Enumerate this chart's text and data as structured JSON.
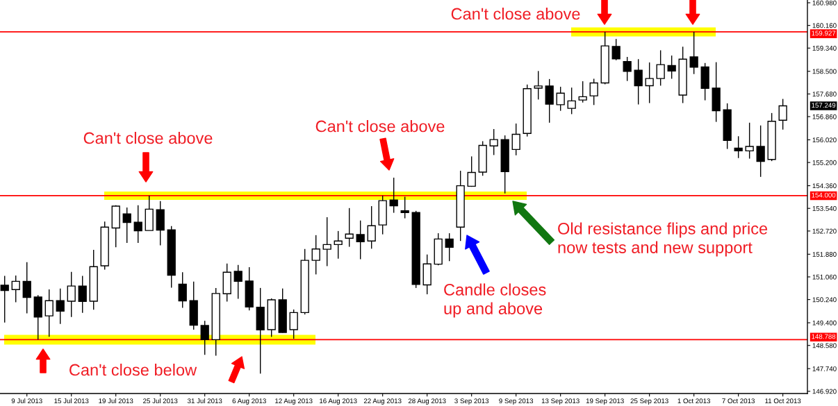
{
  "chart_data": {
    "type": "candlestick",
    "color": "#000000",
    "categories": [
      null,
      null,
      "9 Jul 2013",
      null,
      null,
      null,
      "15 Jul 2013",
      null,
      null,
      null,
      "19 Jul 2013",
      null,
      null,
      null,
      "25 Jul 2013",
      null,
      null,
      null,
      "31 Jul 2013",
      null,
      null,
      null,
      "6 Aug 2013",
      null,
      null,
      null,
      "12 Aug 2013",
      null,
      null,
      null,
      "16 Aug 2013",
      null,
      null,
      null,
      "22 Aug 2013",
      null,
      null,
      null,
      "28 Aug 2013",
      null,
      null,
      null,
      "3 Sep 2013",
      null,
      null,
      null,
      "9 Sep 2013",
      null,
      null,
      null,
      "13 Sep 2013",
      null,
      null,
      null,
      "19 Sep 2013",
      null,
      null,
      null,
      "25 Sep 2013",
      null,
      null,
      null,
      "1 Oct 2013",
      null,
      null,
      null,
      "7 Oct 2013",
      null,
      null,
      null,
      "11 Oct 2013"
    ],
    "ohlc": [
      [
        150.76,
        151.1,
        149.41,
        150.57
      ],
      [
        150.6,
        151.11,
        150.14,
        150.9
      ],
      [
        150.9,
        151.59,
        149.74,
        150.32
      ],
      [
        150.33,
        150.4,
        148.79,
        149.61
      ],
      [
        149.65,
        150.61,
        148.89,
        150.2
      ],
      [
        150.2,
        150.64,
        149.36,
        149.82
      ],
      [
        150.18,
        151.24,
        149.61,
        150.73
      ],
      [
        150.73,
        151.1,
        149.76,
        150.17
      ],
      [
        150.18,
        152.04,
        149.87,
        151.43
      ],
      [
        151.46,
        153.06,
        151.32,
        152.86
      ],
      [
        152.83,
        153.65,
        152.13,
        153.62
      ],
      [
        153.34,
        153.57,
        152.29,
        153.03
      ],
      [
        153.04,
        153.65,
        152.29,
        152.73
      ],
      [
        152.74,
        154.0,
        152.74,
        153.51
      ],
      [
        153.49,
        153.8,
        152.2,
        152.75
      ],
      [
        152.76,
        152.9,
        150.67,
        151.12
      ],
      [
        150.8,
        151.23,
        149.94,
        150.19
      ],
      [
        150.2,
        150.89,
        149.15,
        149.31
      ],
      [
        149.3,
        149.47,
        148.24,
        148.79
      ],
      [
        148.79,
        150.66,
        148.21,
        150.46
      ],
      [
        150.45,
        151.54,
        150.17,
        151.23
      ],
      [
        151.26,
        151.49,
        150.27,
        150.9
      ],
      [
        150.91,
        151.41,
        149.85,
        149.97
      ],
      [
        149.96,
        150.66,
        147.56,
        149.14
      ],
      [
        149.15,
        150.28,
        148.89,
        150.23
      ],
      [
        150.23,
        150.64,
        149.04,
        149.05
      ],
      [
        149.15,
        149.88,
        148.82,
        149.77
      ],
      [
        149.77,
        152.07,
        149.7,
        151.66
      ],
      [
        151.66,
        152.57,
        151.15,
        152.07
      ],
      [
        152.06,
        153.22,
        151.45,
        152.23
      ],
      [
        152.23,
        152.72,
        151.72,
        152.36
      ],
      [
        152.46,
        153.55,
        152.15,
        152.61
      ],
      [
        152.59,
        153.1,
        151.7,
        152.33
      ],
      [
        152.36,
        153.62,
        152.08,
        152.91
      ],
      [
        152.94,
        154.0,
        152.6,
        153.82
      ],
      [
        153.84,
        154.65,
        153.38,
        153.63
      ],
      [
        153.45,
        153.96,
        153.18,
        153.39
      ],
      [
        153.39,
        153.45,
        150.66,
        150.79
      ],
      [
        150.77,
        151.87,
        150.43,
        151.53
      ],
      [
        151.52,
        152.64,
        151.48,
        152.43
      ],
      [
        152.43,
        152.64,
        151.63,
        152.13
      ],
      [
        152.86,
        154.9,
        152.36,
        154.36
      ],
      [
        154.34,
        155.42,
        154.32,
        154.84
      ],
      [
        154.85,
        155.97,
        154.72,
        155.82
      ],
      [
        155.8,
        156.41,
        155.47,
        156.03
      ],
      [
        156.03,
        156.18,
        154.08,
        154.87
      ],
      [
        155.67,
        156.61,
        155.46,
        156.22
      ],
      [
        156.25,
        158.02,
        156.14,
        157.87
      ],
      [
        157.89,
        158.51,
        157.48,
        157.97
      ],
      [
        157.97,
        158.22,
        156.64,
        157.31
      ],
      [
        157.29,
        157.94,
        157.07,
        157.71
      ],
      [
        157.16,
        157.91,
        156.95,
        157.43
      ],
      [
        157.46,
        158.14,
        157.37,
        157.58
      ],
      [
        157.61,
        158.23,
        157.28,
        158.08
      ],
      [
        158.08,
        159.93,
        158.03,
        159.42
      ],
      [
        159.4,
        159.67,
        158.9,
        158.95
      ],
      [
        158.85,
        159.02,
        158.15,
        158.5
      ],
      [
        158.54,
        158.94,
        157.3,
        157.98
      ],
      [
        157.98,
        158.82,
        157.35,
        158.24
      ],
      [
        158.24,
        159.26,
        157.98,
        158.74
      ],
      [
        158.71,
        159.07,
        158.23,
        158.51
      ],
      [
        157.64,
        159.39,
        157.35,
        158.94
      ],
      [
        159.02,
        159.93,
        158.4,
        158.65
      ],
      [
        158.66,
        158.8,
        157.45,
        157.88
      ],
      [
        157.89,
        158.83,
        156.67,
        157.07
      ],
      [
        157.11,
        157.34,
        155.69,
        156.0
      ],
      [
        155.72,
        156.15,
        155.36,
        155.62
      ],
      [
        155.62,
        156.64,
        155.34,
        155.78
      ],
      [
        155.78,
        156.54,
        154.68,
        155.24
      ],
      [
        155.31,
        156.99,
        155.25,
        156.69
      ],
      [
        156.73,
        157.5,
        156.39,
        157.249
      ]
    ],
    "ylim": [
      146.84,
      161.08
    ],
    "yticks": [
      {
        "value": 146.92,
        "label": "146.920"
      },
      {
        "value": 147.74,
        "label": "147.740"
      },
      {
        "value": 148.58,
        "label": "148.580"
      },
      {
        "value": 149.4,
        "label": "149.400"
      },
      {
        "value": 150.24,
        "label": "150.240"
      },
      {
        "value": 151.06,
        "label": "151.060"
      },
      {
        "value": 151.88,
        "label": "151.880"
      },
      {
        "value": 152.72,
        "label": "152.720"
      },
      {
        "value": 153.54,
        "label": "153.540"
      },
      {
        "value": 154.36,
        "label": "154.360"
      },
      {
        "value": 155.2,
        "label": "155.200"
      },
      {
        "value": 156.02,
        "label": "156.020"
      },
      {
        "value": 156.86,
        "label": "156.860"
      },
      {
        "value": 157.68,
        "label": "157.680"
      },
      {
        "value": 158.5,
        "label": "158.500"
      },
      {
        "value": 159.34,
        "label": "159.340"
      },
      {
        "value": 160.16,
        "label": "160.160"
      },
      {
        "value": 160.98,
        "label": "160.980"
      }
    ],
    "ref_lines": [
      {
        "axis": "y",
        "value": 159.927,
        "label": "159.927",
        "color": "#ff0000"
      },
      {
        "axis": "y",
        "value": 154.0,
        "label": "154.000",
        "color": "#ff0000"
      },
      {
        "axis": "y",
        "value": 148.788,
        "label": "148.788",
        "color": "#ff0000"
      }
    ],
    "annotations": [
      "Can't close above",
      "Can't close above",
      "Can't close above",
      "Can't close below",
      "Candle closes\nup and above",
      "Old resistance flips and price\nnow tests and new support",
      "157.249"
    ]
  }
}
